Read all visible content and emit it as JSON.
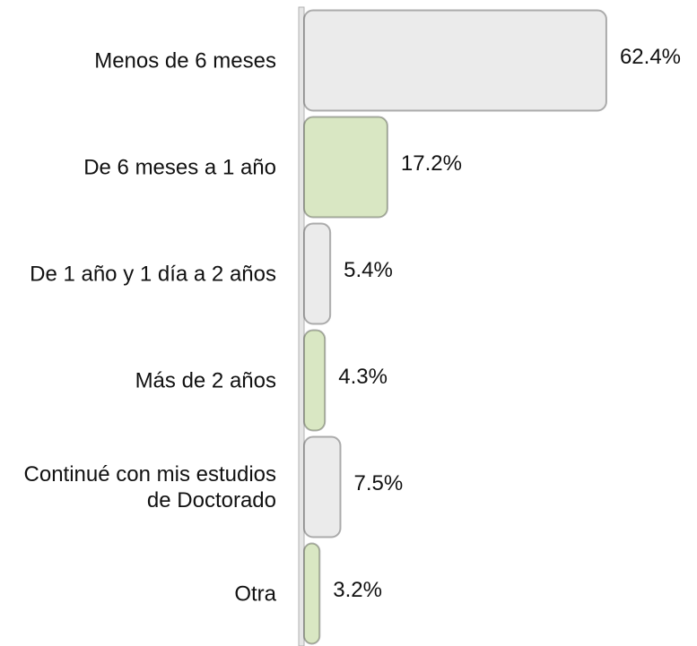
{
  "chart_data": {
    "type": "hbar",
    "categories": [
      "Menos de 6 meses",
      "De 6 meses a 1 año",
      "De 1 año y 1 día a 2 años",
      "Más de 2 años",
      "Continué con mis estudios de Doctorado",
      "Otra"
    ],
    "values": [
      62.4,
      17.2,
      5.4,
      4.3,
      7.5,
      3.2
    ],
    "value_labels": [
      "62.4%",
      "17.2%",
      "5.4%",
      "4.3%",
      "7.5%",
      "3.2%"
    ],
    "colors": [
      "#ebebeb",
      "#d9e7c3",
      "#ebebeb",
      "#d9e7c3",
      "#ebebeb",
      "#d9e7c3"
    ]
  }
}
